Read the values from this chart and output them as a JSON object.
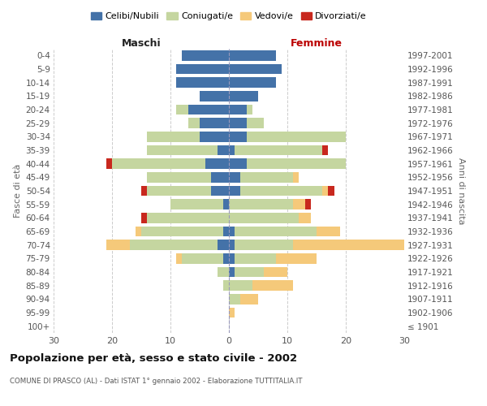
{
  "age_groups": [
    "0-4",
    "5-9",
    "10-14",
    "15-19",
    "20-24",
    "25-29",
    "30-34",
    "35-39",
    "40-44",
    "45-49",
    "50-54",
    "55-59",
    "60-64",
    "65-69",
    "70-74",
    "75-79",
    "80-84",
    "85-89",
    "90-94",
    "95-99",
    "100+"
  ],
  "birth_years": [
    "1997-2001",
    "1992-1996",
    "1987-1991",
    "1982-1986",
    "1977-1981",
    "1972-1976",
    "1967-1971",
    "1962-1966",
    "1957-1961",
    "1952-1956",
    "1947-1951",
    "1942-1946",
    "1937-1941",
    "1932-1936",
    "1927-1931",
    "1922-1926",
    "1917-1921",
    "1912-1916",
    "1907-1911",
    "1902-1906",
    "≤ 1901"
  ],
  "colors": {
    "celibi": "#4472a8",
    "coniugati": "#c5d6a0",
    "vedovi": "#f5c97a",
    "divorziati": "#c8281e"
  },
  "male": {
    "celibi": [
      8,
      9,
      9,
      5,
      7,
      5,
      5,
      2,
      4,
      3,
      3,
      1,
      0,
      1,
      2,
      1,
      0,
      0,
      0,
      0,
      0
    ],
    "coniugati": [
      0,
      0,
      0,
      0,
      2,
      2,
      9,
      12,
      16,
      11,
      11,
      9,
      14,
      14,
      15,
      7,
      2,
      1,
      0,
      0,
      0
    ],
    "vedovi": [
      0,
      0,
      0,
      0,
      0,
      0,
      0,
      0,
      0,
      0,
      0,
      0,
      0,
      1,
      4,
      1,
      0,
      0,
      0,
      0,
      0
    ],
    "divorziati": [
      0,
      0,
      0,
      0,
      0,
      0,
      0,
      0,
      1,
      0,
      1,
      0,
      1,
      0,
      0,
      0,
      0,
      0,
      0,
      0,
      0
    ]
  },
  "female": {
    "nubili": [
      8,
      9,
      8,
      5,
      3,
      3,
      3,
      1,
      3,
      2,
      2,
      0,
      0,
      1,
      1,
      1,
      1,
      0,
      0,
      0,
      0
    ],
    "coniugate": [
      0,
      0,
      0,
      0,
      1,
      3,
      17,
      15,
      17,
      9,
      14,
      11,
      12,
      14,
      10,
      7,
      5,
      4,
      2,
      0,
      0
    ],
    "vedove": [
      0,
      0,
      0,
      0,
      0,
      0,
      0,
      0,
      0,
      1,
      1,
      2,
      2,
      4,
      19,
      7,
      4,
      7,
      3,
      1,
      0
    ],
    "divorziate": [
      0,
      0,
      0,
      0,
      0,
      0,
      0,
      1,
      0,
      0,
      1,
      1,
      0,
      0,
      0,
      0,
      0,
      0,
      0,
      0,
      0
    ]
  },
  "xlim": 30,
  "title": "Popolazione per età, sesso e stato civile - 2002",
  "subtitle": "COMUNE DI PRASCO (AL) - Dati ISTAT 1° gennaio 2002 - Elaborazione TUTTITALIA.IT",
  "xlabel_left": "Maschi",
  "xlabel_right": "Femmine",
  "ylabel_left": "Fasce di età",
  "ylabel_right": "Anni di nascita",
  "legend_labels": [
    "Celibi/Nubili",
    "Coniugati/e",
    "Vedovi/e",
    "Divorziati/e"
  ],
  "bg_color": "#ffffff",
  "grid_color": "#cccccc"
}
